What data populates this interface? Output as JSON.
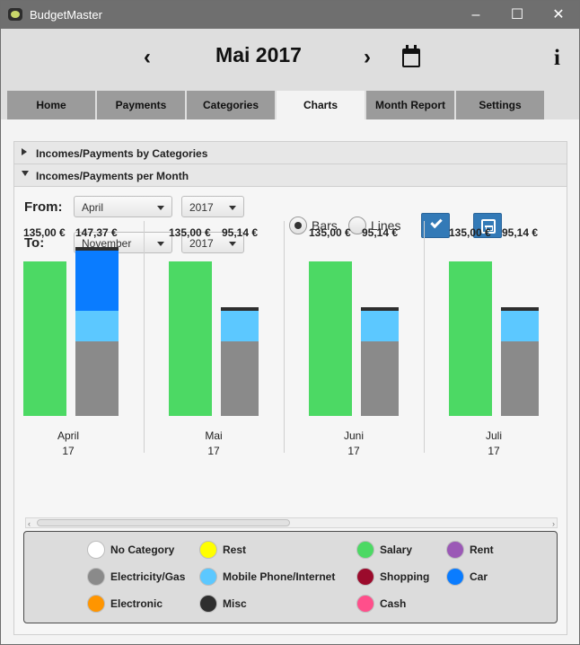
{
  "window": {
    "title": "BudgetMaster",
    "controls": {
      "minimize": "–",
      "maximize": "☐",
      "close": "✕"
    }
  },
  "header": {
    "month_title": "Mai 2017",
    "prev_icon": "chevron-left-icon",
    "next_icon": "chevron-right-icon",
    "calendar_icon": "calendar-icon",
    "info_icon": "info-icon",
    "info_text": "i"
  },
  "tabs": [
    {
      "label": "Home"
    },
    {
      "label": "Payments"
    },
    {
      "label": "Categories"
    },
    {
      "label": "Charts",
      "active": true
    },
    {
      "label": "Month Report"
    },
    {
      "label": "Settings"
    }
  ],
  "charts": {
    "sections": [
      {
        "label": "Incomes/Payments by Categories",
        "expanded": false
      },
      {
        "label": "Incomes/Payments per Month",
        "expanded": true
      }
    ],
    "filters": {
      "from_label": "From:",
      "to_label": "To:",
      "from_month": "April",
      "from_year": "2017",
      "to_month": "November",
      "to_year": "2017"
    },
    "chart_mode": {
      "bars_label": "Bars",
      "lines_label": "Lines",
      "selected": "Bars"
    },
    "buttons": {
      "apply_icon": "check-icon",
      "save_icon": "save-icon"
    }
  },
  "chart_data": {
    "type": "bar",
    "categories": [
      {
        "month": "April",
        "year": "17"
      },
      {
        "month": "Mai",
        "year": "17"
      },
      {
        "month": "Juni",
        "year": "17"
      },
      {
        "month": "Juli",
        "year": "17"
      }
    ],
    "series": [
      {
        "name": "Incomes",
        "values": [
          135.0,
          135.0,
          135.0,
          135.0
        ],
        "labels": [
          "135,00 €",
          "135,00 €",
          "135,00 €",
          "135,00 €"
        ]
      },
      {
        "name": "Payments",
        "values": [
          147.37,
          95.14,
          95.14,
          95.14
        ],
        "labels": [
          "147,37 €",
          "95,14 €",
          "95,14 €",
          "95,14 €"
        ],
        "segments": [
          [
            {
              "category": "Electricity/Gas",
              "color": "#8a8a8a",
              "value": 65.0
            },
            {
              "category": "Mobile Phone/Internet",
              "color": "#5cc8ff",
              "value": 27.0
            },
            {
              "category": "Car",
              "color": "#0a7cff",
              "value": 52.37
            },
            {
              "category": "Misc",
              "color": "#2e2e2e",
              "value": 3.0
            }
          ],
          [
            {
              "category": "Electricity/Gas",
              "color": "#8a8a8a",
              "value": 65.0
            },
            {
              "category": "Mobile Phone/Internet",
              "color": "#5cc8ff",
              "value": 27.14
            },
            {
              "category": "Misc",
              "color": "#2e2e2e",
              "value": 3.0
            }
          ],
          [
            {
              "category": "Electricity/Gas",
              "color": "#8a8a8a",
              "value": 65.0
            },
            {
              "category": "Mobile Phone/Internet",
              "color": "#5cc8ff",
              "value": 27.14
            },
            {
              "category": "Misc",
              "color": "#2e2e2e",
              "value": 3.0
            }
          ],
          [
            {
              "category": "Electricity/Gas",
              "color": "#8a8a8a",
              "value": 65.0
            },
            {
              "category": "Mobile Phone/Internet",
              "color": "#5cc8ff",
              "value": 27.14
            },
            {
              "category": "Misc",
              "color": "#2e2e2e",
              "value": 3.0
            }
          ]
        ]
      }
    ],
    "ylim": [
      0,
      150
    ],
    "colors": {
      "income": "#4cd964"
    }
  },
  "legend": [
    {
      "label": "No Category",
      "color": "#ffffff"
    },
    {
      "label": "Rest",
      "color": "#ffff00"
    },
    {
      "label": "Salary",
      "color": "#4cd964"
    },
    {
      "label": "Rent",
      "color": "#9b59b6"
    },
    {
      "label": "Electricity/Gas",
      "color": "#8a8a8a"
    },
    {
      "label": "Mobile Phone/Internet",
      "color": "#5cc8ff"
    },
    {
      "label": "Shopping",
      "color": "#9b0b2c"
    },
    {
      "label": "Car",
      "color": "#0a7cff"
    },
    {
      "label": "Electronic",
      "color": "#ff9500"
    },
    {
      "label": "Misc",
      "color": "#2e2e2e"
    },
    {
      "label": "Cash",
      "color": "#ff4f8b"
    }
  ]
}
